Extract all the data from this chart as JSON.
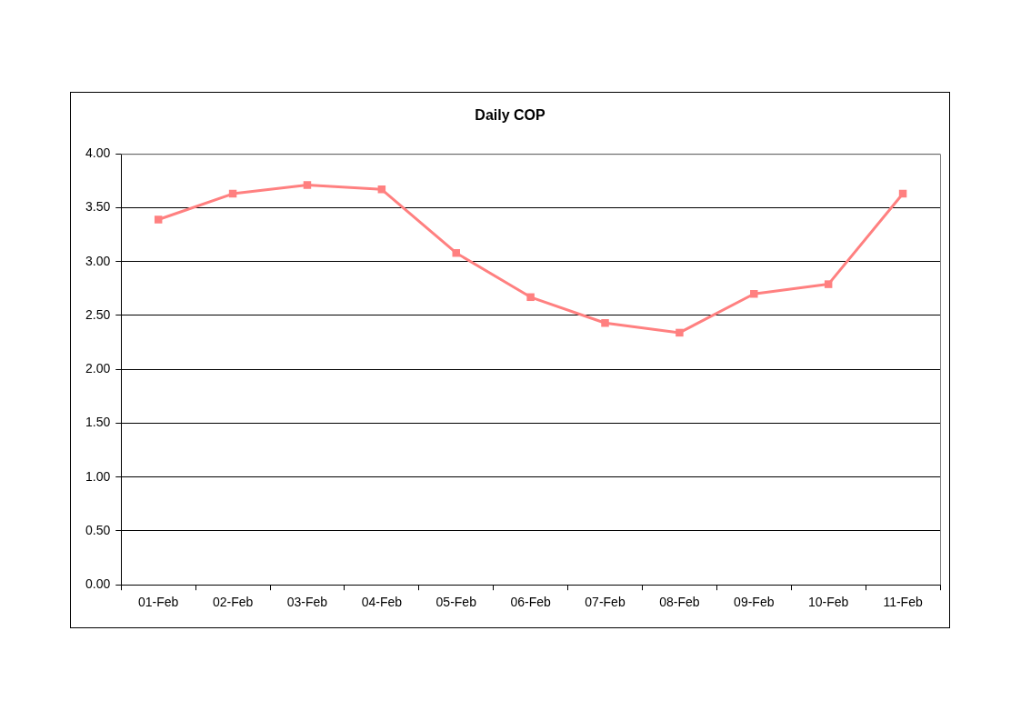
{
  "chart_data": {
    "type": "line",
    "title": "Daily COP",
    "categories": [
      "01-Feb",
      "02-Feb",
      "03-Feb",
      "04-Feb",
      "05-Feb",
      "06-Feb",
      "07-Feb",
      "08-Feb",
      "09-Feb",
      "10-Feb",
      "11-Feb"
    ],
    "series": [
      {
        "color": "#ff8080",
        "values": [
          3.39,
          3.63,
          3.71,
          3.67,
          3.08,
          2.67,
          2.43,
          2.34,
          2.7,
          2.79,
          3.63
        ]
      }
    ],
    "ylim": [
      0,
      4
    ],
    "yticks": [
      {
        "value": 0,
        "label": "0.00"
      },
      {
        "value": 0.5,
        "label": "0.50"
      },
      {
        "value": 1,
        "label": "1.00"
      },
      {
        "value": 1.5,
        "label": "1.50"
      },
      {
        "value": 2,
        "label": "2.00"
      },
      {
        "value": 2.5,
        "label": "2.50"
      },
      {
        "value": 3,
        "label": "3.00"
      },
      {
        "value": 3.5,
        "label": "3.50"
      },
      {
        "value": 4,
        "label": "4.00"
      }
    ],
    "grid": "y",
    "legend": false,
    "marker": "square",
    "line_style": "solid"
  }
}
